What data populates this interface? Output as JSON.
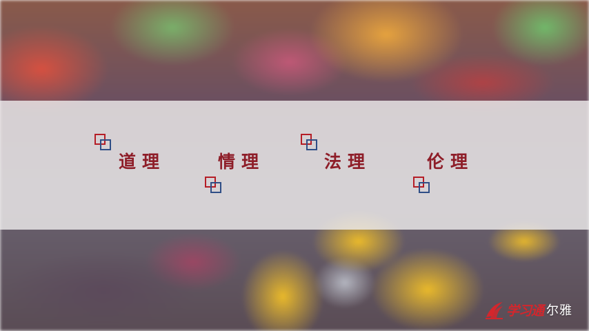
{
  "slide": {
    "items": [
      {
        "label": "道理"
      },
      {
        "label": "情理"
      },
      {
        "label": "法理"
      },
      {
        "label": "伦理"
      }
    ]
  },
  "colors": {
    "text": "#8e1d28",
    "deco_red": "#b51d26",
    "deco_blue": "#2f4e86",
    "logo_red": "#d4262c"
  },
  "logo": {
    "icon": "xuexitong-swoosh-icon",
    "brand_script": "学习通",
    "suffix": "尔雅"
  }
}
